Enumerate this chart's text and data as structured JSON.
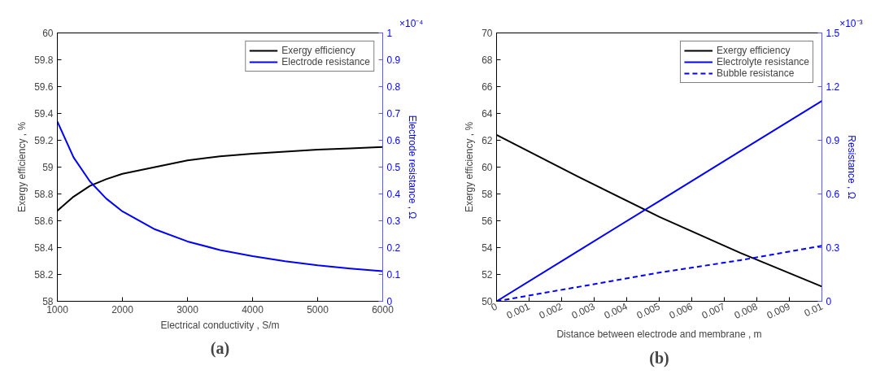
{
  "chart_data": [
    {
      "type": "line",
      "xlabel": "Electrical conductivity , S/m",
      "ylabel": "Exergy efficiency , %",
      "y2label": "Electrode resistance , Ω",
      "annotations": [
        "×10⁻⁴",
        "(a)"
      ],
      "x": [
        1000,
        1250,
        1500,
        1750,
        2000,
        2500,
        3000,
        3500,
        4000,
        4500,
        5000,
        5500,
        6000
      ],
      "xlim": [
        1000,
        6000
      ],
      "xticks": [
        1000,
        2000,
        3000,
        4000,
        5000,
        6000
      ],
      "ylim": [
        58,
        60
      ],
      "yticks": [
        58,
        58.2,
        58.4,
        58.6,
        58.8,
        59,
        59.2,
        59.4,
        59.6,
        59.8,
        60
      ],
      "y2lim": [
        0,
        1
      ],
      "y2ticks": [
        0,
        0.1,
        0.2,
        0.3,
        0.4,
        0.5,
        0.6,
        0.7,
        0.8,
        0.9,
        1
      ],
      "legend": "top right",
      "grid": false,
      "line_style": "solid",
      "series": [
        {
          "name": "Exergy efficiency",
          "color": "#000000",
          "values": [
            58.675,
            58.78,
            58.86,
            58.91,
            58.95,
            59.0,
            59.05,
            59.08,
            59.1,
            59.115,
            59.13,
            59.14,
            59.15
          ]
        },
        {
          "name": "Electrode resistance",
          "color": "#0000ff",
          "axis": "y2",
          "values": [
            0.67,
            0.536,
            0.447,
            0.383,
            0.335,
            0.268,
            0.223,
            0.191,
            0.168,
            0.149,
            0.134,
            0.122,
            0.112
          ]
        }
      ]
    },
    {
      "type": "line",
      "xlabel": "Distance between electrode and membrane , m",
      "ylabel": "Exergy efficiency , %",
      "y2label": "Resistance , Ω",
      "annotations": [
        "×10⁻³",
        "(b)"
      ],
      "x": [
        0,
        0.0025,
        0.005,
        0.0075,
        0.01
      ],
      "xlim": [
        0,
        0.01
      ],
      "xticks": [
        0,
        0.001,
        0.002,
        0.003,
        0.004,
        0.005,
        0.006,
        0.007,
        0.008,
        0.009,
        0.01
      ],
      "ylim": [
        50,
        70
      ],
      "yticks": [
        50,
        52,
        54,
        56,
        58,
        60,
        62,
        64,
        66,
        68,
        70
      ],
      "y2lim": [
        0,
        1.5
      ],
      "y2ticks": [
        0,
        0.3,
        0.6,
        0.9,
        1.2,
        1.5
      ],
      "legend": "top right",
      "grid": false,
      "series": [
        {
          "name": "Exergy efficiency",
          "color": "#000000",
          "values": [
            62.4,
            59.3,
            56.3,
            53.6,
            51.1
          ]
        },
        {
          "name": "Electrolyte resistance",
          "color": "#0000ff",
          "axis": "y2",
          "values": [
            0,
            0.28,
            0.56,
            0.84,
            1.12
          ]
        },
        {
          "name": "Bubble resistance",
          "color": "#0000ff",
          "axis": "y2",
          "line_style": "dashed",
          "values": [
            0,
            0.08,
            0.16,
            0.23,
            0.31
          ]
        }
      ]
    }
  ]
}
